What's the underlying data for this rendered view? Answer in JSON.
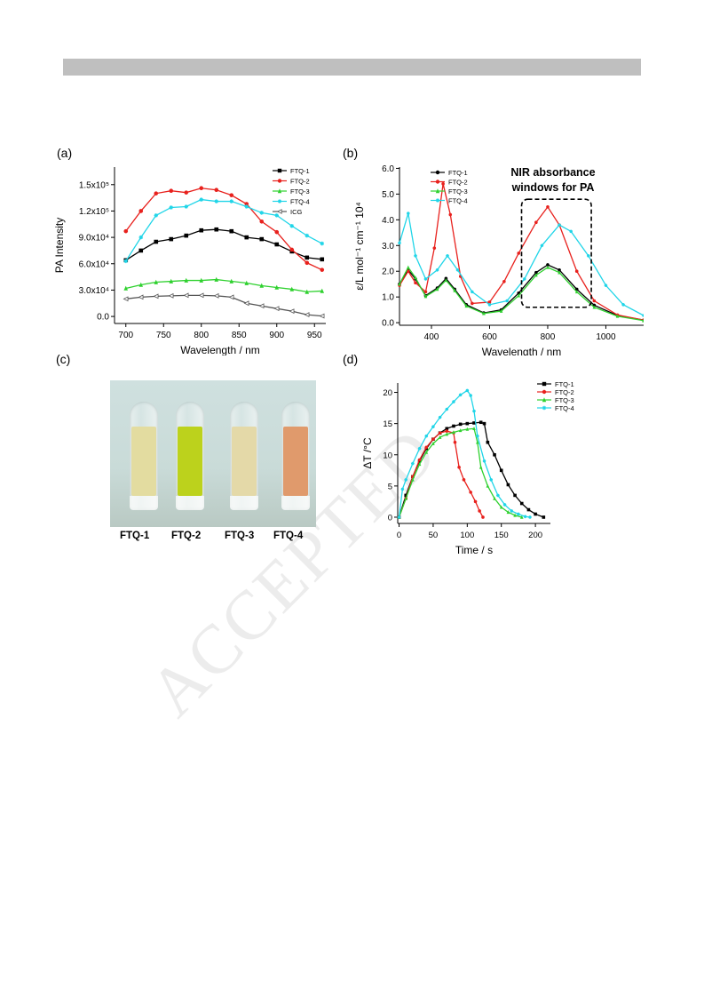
{
  "panels": {
    "a": "(a)",
    "b": "(b)",
    "c": "(c)",
    "d": "(d)"
  },
  "watermark": "ACCEPTED",
  "photo": {
    "vials": [
      {
        "label": "FTQ-1",
        "color": "#e3dca0"
      },
      {
        "label": "FTQ-2",
        "color": "#bcd21c"
      },
      {
        "label": "FTQ-3",
        "color": "#e4d9a8"
      },
      {
        "label": "FTQ-4",
        "color": "#e09a6c"
      }
    ]
  },
  "chart_data": [
    {
      "id": "a",
      "type": "line",
      "xlabel": "Wavelength / nm",
      "ylabel": "PA Intensity",
      "xlim": [
        685,
        965
      ],
      "ylim": [
        -8000,
        170000
      ],
      "xticks": [
        700,
        750,
        800,
        850,
        900,
        950
      ],
      "xtick_labels": [
        "700",
        "750",
        "800",
        "850",
        "900",
        "950"
      ],
      "yticks": [
        0,
        30000,
        60000,
        90000,
        120000,
        150000
      ],
      "ytick_labels": [
        "0.0",
        "3.0x10⁴",
        "6.0x10⁴",
        "9.0x10⁴",
        "1.2x10⁵",
        "1.5x10⁵"
      ],
      "legend": "top-right",
      "x": [
        700,
        720,
        740,
        760,
        780,
        800,
        820,
        840,
        860,
        880,
        900,
        920,
        940,
        960
      ],
      "series": [
        {
          "name": "FTQ-1",
          "color": "#000000",
          "marker": "square",
          "values": [
            64000,
            75000,
            85000,
            88000,
            92000,
            98000,
            99000,
            97000,
            90000,
            88000,
            82000,
            74000,
            67000,
            65000
          ]
        },
        {
          "name": "FTQ-2",
          "color": "#e8211d",
          "marker": "dot",
          "values": [
            97000,
            120000,
            140000,
            143000,
            141000,
            146000,
            144000,
            138000,
            128000,
            108000,
            96000,
            76000,
            61000,
            53000
          ]
        },
        {
          "name": "FTQ-3",
          "color": "#2fd12f",
          "marker": "triangle",
          "values": [
            32000,
            36000,
            39000,
            40000,
            41000,
            41000,
            42000,
            40000,
            38000,
            35000,
            33000,
            31000,
            28000,
            29000
          ]
        },
        {
          "name": "FTQ-4",
          "color": "#20d5e8",
          "marker": "star",
          "values": [
            63000,
            90000,
            115000,
            124000,
            125000,
            133000,
            131000,
            131000,
            125000,
            118000,
            115000,
            103000,
            92000,
            83000
          ]
        },
        {
          "name": "ICG",
          "color": "#555555",
          "marker": "open-triangle",
          "values": [
            20000,
            22000,
            23000,
            23500,
            24000,
            24000,
            23500,
            22000,
            15000,
            12000,
            9000,
            6000,
            2000,
            500
          ]
        }
      ]
    },
    {
      "id": "b",
      "type": "line",
      "xlabel": "Wavelength / nm",
      "ylabel": "ε/L mol⁻¹ cm⁻¹ 10⁴",
      "xlim": [
        290,
        1130
      ],
      "ylim": [
        -0.1,
        6.05
      ],
      "xticks": [
        400,
        600,
        800,
        1000
      ],
      "xtick_labels": [
        "400",
        "600",
        "800",
        "1000"
      ],
      "yticks": [
        0,
        1,
        2,
        3,
        4,
        5,
        6
      ],
      "ytick_labels": [
        "0.0",
        "1.0",
        "2.0",
        "3.0",
        "4.0",
        "5.0",
        "6.0"
      ],
      "legend": "top-left",
      "annotation": "NIR absorbance windows for PA",
      "annotation_lines": [
        "NIR absorbance",
        "windows for PA"
      ],
      "box_x": [
        710,
        950
      ],
      "box_y": [
        0.6,
        4.8
      ],
      "series": [
        {
          "name": "FTQ-1",
          "color": "#000000",
          "marker": "dot",
          "points": [
            [
              290,
              1.5
            ],
            [
              320,
              2.05
            ],
            [
              345,
              1.7
            ],
            [
              380,
              1.05
            ],
            [
              420,
              1.35
            ],
            [
              450,
              1.72
            ],
            [
              480,
              1.3
            ],
            [
              520,
              0.7
            ],
            [
              580,
              0.38
            ],
            [
              640,
              0.5
            ],
            [
              700,
              1.15
            ],
            [
              760,
              1.95
            ],
            [
              800,
              2.25
            ],
            [
              840,
              2.05
            ],
            [
              900,
              1.3
            ],
            [
              960,
              0.68
            ],
            [
              1040,
              0.28
            ],
            [
              1130,
              0.1
            ]
          ]
        },
        {
          "name": "FTQ-2",
          "color": "#e8211d",
          "marker": "dot",
          "points": [
            [
              290,
              1.45
            ],
            [
              320,
              2.0
            ],
            [
              345,
              1.55
            ],
            [
              380,
              1.2
            ],
            [
              410,
              2.9
            ],
            [
              440,
              5.4
            ],
            [
              465,
              4.2
            ],
            [
              500,
              1.8
            ],
            [
              540,
              0.75
            ],
            [
              600,
              0.8
            ],
            [
              650,
              1.6
            ],
            [
              700,
              2.7
            ],
            [
              760,
              3.9
            ],
            [
              800,
              4.5
            ],
            [
              840,
              3.8
            ],
            [
              900,
              2.0
            ],
            [
              960,
              0.85
            ],
            [
              1040,
              0.3
            ],
            [
              1130,
              0.1
            ]
          ]
        },
        {
          "name": "FTQ-3",
          "color": "#2fd12f",
          "marker": "triangle",
          "points": [
            [
              290,
              1.5
            ],
            [
              320,
              2.15
            ],
            [
              345,
              1.75
            ],
            [
              380,
              1.02
            ],
            [
              420,
              1.3
            ],
            [
              450,
              1.65
            ],
            [
              480,
              1.25
            ],
            [
              520,
              0.65
            ],
            [
              580,
              0.36
            ],
            [
              640,
              0.45
            ],
            [
              700,
              1.05
            ],
            [
              760,
              1.85
            ],
            [
              800,
              2.15
            ],
            [
              840,
              1.95
            ],
            [
              900,
              1.2
            ],
            [
              960,
              0.6
            ],
            [
              1040,
              0.25
            ],
            [
              1130,
              0.08
            ]
          ]
        },
        {
          "name": "FTQ-4",
          "color": "#20d5e8",
          "marker": "star",
          "points": [
            [
              290,
              3.1
            ],
            [
              320,
              4.25
            ],
            [
              345,
              2.6
            ],
            [
              380,
              1.7
            ],
            [
              420,
              2.05
            ],
            [
              455,
              2.6
            ],
            [
              490,
              2.05
            ],
            [
              540,
              1.2
            ],
            [
              600,
              0.7
            ],
            [
              660,
              0.85
            ],
            [
              720,
              1.7
            ],
            [
              780,
              3.0
            ],
            [
              840,
              3.8
            ],
            [
              880,
              3.55
            ],
            [
              940,
              2.6
            ],
            [
              1000,
              1.45
            ],
            [
              1060,
              0.7
            ],
            [
              1130,
              0.28
            ]
          ]
        }
      ]
    },
    {
      "id": "d",
      "type": "line",
      "xlabel": "Time / s",
      "ylabel": "ΔT /°C",
      "xlim": [
        -2,
        222
      ],
      "ylim": [
        -1,
        21.5
      ],
      "xticks": [
        0,
        50,
        100,
        150,
        200
      ],
      "xtick_labels": [
        "0",
        "50",
        "100",
        "150",
        "200"
      ],
      "yticks": [
        0,
        5,
        10,
        15,
        20
      ],
      "ytick_labels": [
        "0",
        "5",
        "10",
        "15",
        "20"
      ],
      "legend": "top-right",
      "series": [
        {
          "name": "FTQ-1",
          "color": "#000000",
          "marker": "square",
          "points": [
            [
              0,
              0
            ],
            [
              10,
              3.5
            ],
            [
              20,
              6.5
            ],
            [
              30,
              9
            ],
            [
              40,
              11
            ],
            [
              50,
              12.5
            ],
            [
              60,
              13.5
            ],
            [
              70,
              14.2
            ],
            [
              80,
              14.6
            ],
            [
              90,
              14.9
            ],
            [
              100,
              15
            ],
            [
              110,
              15.1
            ],
            [
              120,
              15.2
            ],
            [
              125,
              15
            ],
            [
              130,
              12
            ],
            [
              140,
              10
            ],
            [
              150,
              7.5
            ],
            [
              160,
              5.2
            ],
            [
              170,
              3.5
            ],
            [
              180,
              2.2
            ],
            [
              190,
              1.2
            ],
            [
              200,
              0.5
            ],
            [
              212,
              0
            ]
          ]
        },
        {
          "name": "FTQ-2",
          "color": "#e8211d",
          "marker": "dot",
          "points": [
            [
              0,
              0
            ],
            [
              10,
              3
            ],
            [
              20,
              6.5
            ],
            [
              30,
              9.2
            ],
            [
              40,
              11.2
            ],
            [
              50,
              12.5
            ],
            [
              60,
              13.5
            ],
            [
              70,
              13.8
            ],
            [
              80,
              13.5
            ],
            [
              82,
              12
            ],
            [
              88,
              8
            ],
            [
              95,
              6
            ],
            [
              105,
              4
            ],
            [
              112,
              2.5
            ],
            [
              118,
              1
            ],
            [
              123,
              0
            ]
          ]
        },
        {
          "name": "FTQ-3",
          "color": "#2fd12f",
          "marker": "triangle",
          "points": [
            [
              0,
              0
            ],
            [
              10,
              3
            ],
            [
              20,
              6
            ],
            [
              30,
              8.5
            ],
            [
              40,
              10.4
            ],
            [
              50,
              11.8
            ],
            [
              60,
              12.8
            ],
            [
              70,
              13.3
            ],
            [
              80,
              13.6
            ],
            [
              90,
              13.9
            ],
            [
              100,
              14.1
            ],
            [
              110,
              14.2
            ],
            [
              115,
              12
            ],
            [
              120,
              8
            ],
            [
              130,
              5
            ],
            [
              140,
              3
            ],
            [
              150,
              1.6
            ],
            [
              160,
              0.8
            ],
            [
              170,
              0.3
            ],
            [
              180,
              0
            ]
          ]
        },
        {
          "name": "FTQ-4",
          "color": "#20d5e8",
          "marker": "star",
          "points": [
            [
              0,
              0
            ],
            [
              5,
              4.5
            ],
            [
              10,
              6
            ],
            [
              20,
              8.6
            ],
            [
              30,
              11
            ],
            [
              40,
              13
            ],
            [
              50,
              14.5
            ],
            [
              60,
              16
            ],
            [
              70,
              17.3
            ],
            [
              80,
              18.5
            ],
            [
              90,
              19.6
            ],
            [
              100,
              20.3
            ],
            [
              105,
              19.5
            ],
            [
              110,
              17
            ],
            [
              115,
              13
            ],
            [
              125,
              9
            ],
            [
              135,
              6
            ],
            [
              145,
              3.5
            ],
            [
              155,
              2
            ],
            [
              165,
              1
            ],
            [
              175,
              0.5
            ],
            [
              185,
              0.1
            ],
            [
              192,
              0
            ]
          ]
        }
      ]
    }
  ]
}
